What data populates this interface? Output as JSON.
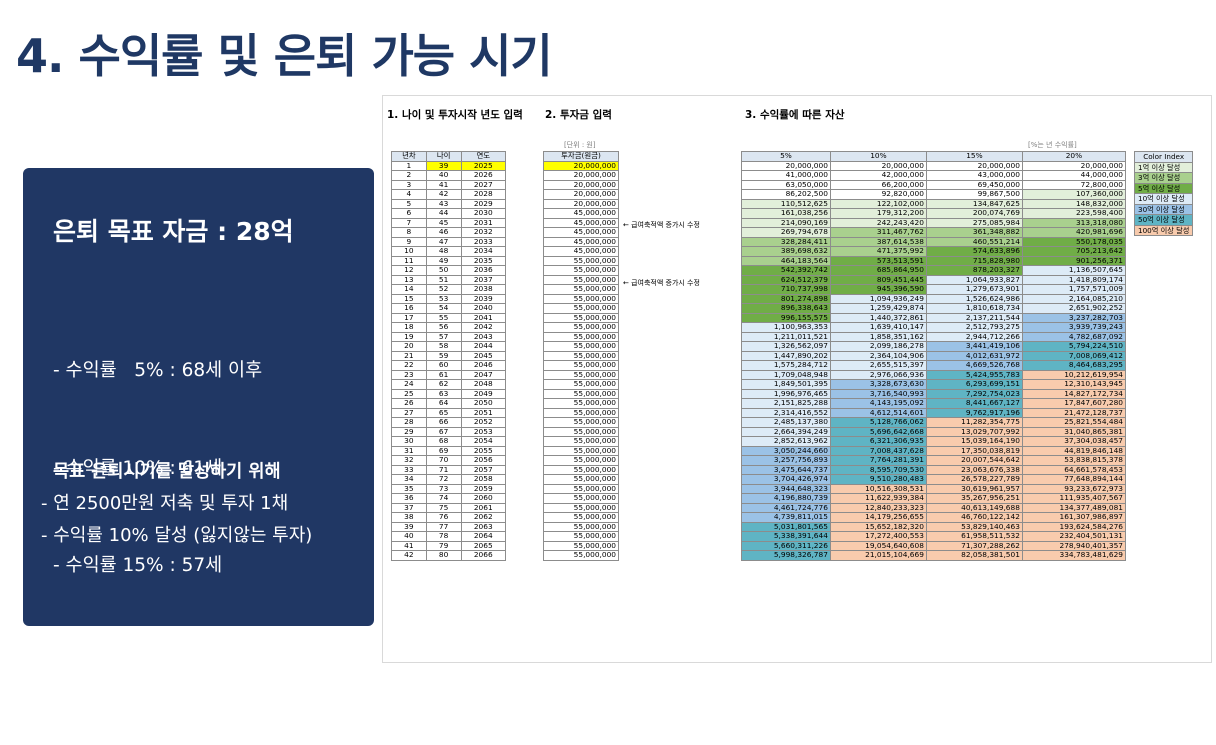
{
  "title": "4. 수익률 및 은퇴 가능 시기",
  "panel": {
    "goal": "은퇴 목표 자금 : 28억",
    "rates": [
      "- 수익률   5% : 68세 이후",
      "- 수익률 10% : 61세",
      "- 수익률 15% : 57세",
      "- 수익률 20% : 55세"
    ],
    "subhead": "목표 은퇴시기를 달성하기 위해",
    "plans": [
      "- 연 2500만원 저축 및 투자 1채",
      "- 수익률 10% 달성 (잃지않는 투자)"
    ]
  },
  "sheet": {
    "section1": "1. 나이 및 투자시작 년도 입력",
    "section2": "2. 투자금 입력",
    "section3": "3. 수익률에 따른 자산",
    "unit_won": "[단위 : 원]",
    "unit_rate": "[%는 년 수익률]",
    "headers1": [
      "년차",
      "나이",
      "연도"
    ],
    "header2": "투자금(원금)",
    "headers3": [
      "5%",
      "10%",
      "15%",
      "20%"
    ],
    "note": "← 급여축적액 증가시 수정",
    "legend_title": "Color Index",
    "legend": [
      {
        "label": "1억 이상 달성",
        "color": "#e2efda"
      },
      {
        "label": "3억 이상 달성",
        "color": "#a9d08e"
      },
      {
        "label": "5억 이상 달성",
        "color": "#70ad47"
      },
      {
        "label": "10억 이상 달성",
        "color": "#ddebf7"
      },
      {
        "label": "30억 이상 달성",
        "color": "#9bc2e6"
      },
      {
        "label": "50억 이상 달성",
        "color": "#5fb4c4"
      },
      {
        "label": "100억 이상 달성",
        "color": "#f8cbad"
      }
    ],
    "rows": [
      [
        "1",
        "39",
        "2025",
        "20,000,000",
        "20,000,000",
        "20,000,000",
        "20,000,000",
        "20,000,000"
      ],
      [
        "2",
        "40",
        "2026",
        "20,000,000",
        "41,000,000",
        "42,000,000",
        "43,000,000",
        "44,000,000"
      ],
      [
        "3",
        "41",
        "2027",
        "20,000,000",
        "63,050,000",
        "66,200,000",
        "69,450,000",
        "72,800,000"
      ],
      [
        "4",
        "42",
        "2028",
        "20,000,000",
        "86,202,500",
        "92,820,000",
        "99,867,500",
        "107,360,000"
      ],
      [
        "5",
        "43",
        "2029",
        "20,000,000",
        "110,512,625",
        "122,102,000",
        "134,847,625",
        "148,832,000"
      ],
      [
        "6",
        "44",
        "2030",
        "45,000,000",
        "161,038,256",
        "179,312,200",
        "200,074,769",
        "223,598,400"
      ],
      [
        "7",
        "45",
        "2031",
        "45,000,000",
        "214,090,169",
        "242,243,420",
        "275,085,984",
        "313,318,080"
      ],
      [
        "8",
        "46",
        "2032",
        "45,000,000",
        "269,794,678",
        "311,467,762",
        "361,348,882",
        "420,981,696"
      ],
      [
        "9",
        "47",
        "2033",
        "45,000,000",
        "328,284,411",
        "387,614,538",
        "460,551,214",
        "550,178,035"
      ],
      [
        "10",
        "48",
        "2034",
        "45,000,000",
        "389,698,632",
        "471,375,992",
        "574,633,896",
        "705,213,642"
      ],
      [
        "11",
        "49",
        "2035",
        "55,000,000",
        "464,183,564",
        "573,513,591",
        "715,828,980",
        "901,256,371"
      ],
      [
        "12",
        "50",
        "2036",
        "55,000,000",
        "542,392,742",
        "685,864,950",
        "878,203,327",
        "1,136,507,645"
      ],
      [
        "13",
        "51",
        "2037",
        "55,000,000",
        "624,512,379",
        "809,451,445",
        "1,064,933,827",
        "1,418,809,174"
      ],
      [
        "14",
        "52",
        "2038",
        "55,000,000",
        "710,737,998",
        "945,396,590",
        "1,279,673,901",
        "1,757,571,009"
      ],
      [
        "15",
        "53",
        "2039",
        "55,000,000",
        "801,274,898",
        "1,094,936,249",
        "1,526,624,986",
        "2,164,085,210"
      ],
      [
        "16",
        "54",
        "2040",
        "55,000,000",
        "896,338,643",
        "1,259,429,874",
        "1,810,618,734",
        "2,651,902,252"
      ],
      [
        "17",
        "55",
        "2041",
        "55,000,000",
        "996,155,575",
        "1,440,372,861",
        "2,137,211,544",
        "3,237,282,703"
      ],
      [
        "18",
        "56",
        "2042",
        "55,000,000",
        "1,100,963,353",
        "1,639,410,147",
        "2,512,793,275",
        "3,939,739,243"
      ],
      [
        "19",
        "57",
        "2043",
        "55,000,000",
        "1,211,011,521",
        "1,858,351,162",
        "2,944,712,266",
        "4,782,687,092"
      ],
      [
        "20",
        "58",
        "2044",
        "55,000,000",
        "1,326,562,097",
        "2,099,186,278",
        "3,441,419,106",
        "5,794,224,510"
      ],
      [
        "21",
        "59",
        "2045",
        "55,000,000",
        "1,447,890,202",
        "2,364,104,906",
        "4,012,631,972",
        "7,008,069,412"
      ],
      [
        "22",
        "60",
        "2046",
        "55,000,000",
        "1,575,284,712",
        "2,655,515,397",
        "4,669,526,768",
        "8,464,683,295"
      ],
      [
        "23",
        "61",
        "2047",
        "55,000,000",
        "1,709,048,948",
        "2,976,066,936",
        "5,424,955,783",
        "10,212,619,954"
      ],
      [
        "24",
        "62",
        "2048",
        "55,000,000",
        "1,849,501,395",
        "3,328,673,630",
        "6,293,699,151",
        "12,310,143,945"
      ],
      [
        "25",
        "63",
        "2049",
        "55,000,000",
        "1,996,976,465",
        "3,716,540,993",
        "7,292,754,023",
        "14,827,172,734"
      ],
      [
        "26",
        "64",
        "2050",
        "55,000,000",
        "2,151,825,288",
        "4,143,195,092",
        "8,441,667,127",
        "17,847,607,280"
      ],
      [
        "27",
        "65",
        "2051",
        "55,000,000",
        "2,314,416,552",
        "4,612,514,601",
        "9,762,917,196",
        "21,472,128,737"
      ],
      [
        "28",
        "66",
        "2052",
        "55,000,000",
        "2,485,137,380",
        "5,128,766,062",
        "11,282,354,775",
        "25,821,554,484"
      ],
      [
        "29",
        "67",
        "2053",
        "55,000,000",
        "2,664,394,249",
        "5,696,642,668",
        "13,029,707,992",
        "31,040,865,381"
      ],
      [
        "30",
        "68",
        "2054",
        "55,000,000",
        "2,852,613,962",
        "6,321,306,935",
        "15,039,164,190",
        "37,304,038,457"
      ],
      [
        "31",
        "69",
        "2055",
        "55,000,000",
        "3,050,244,660",
        "7,008,437,628",
        "17,350,038,819",
        "44,819,846,148"
      ],
      [
        "32",
        "70",
        "2056",
        "55,000,000",
        "3,257,756,893",
        "7,764,281,391",
        "20,007,544,642",
        "53,838,815,378"
      ],
      [
        "33",
        "71",
        "2057",
        "55,000,000",
        "3,475,644,737",
        "8,595,709,530",
        "23,063,676,338",
        "64,661,578,453"
      ],
      [
        "34",
        "72",
        "2058",
        "55,000,000",
        "3,704,426,974",
        "9,510,280,483",
        "26,578,227,789",
        "77,648,894,144"
      ],
      [
        "35",
        "73",
        "2059",
        "55,000,000",
        "3,944,648,323",
        "10,516,308,531",
        "30,619,961,957",
        "93,233,672,973"
      ],
      [
        "36",
        "74",
        "2060",
        "55,000,000",
        "4,196,880,739",
        "11,622,939,384",
        "35,267,956,251",
        "111,935,407,567"
      ],
      [
        "37",
        "75",
        "2061",
        "55,000,000",
        "4,461,724,776",
        "12,840,233,323",
        "40,613,149,688",
        "134,377,489,081"
      ],
      [
        "38",
        "76",
        "2062",
        "55,000,000",
        "4,739,811,015",
        "14,179,256,655",
        "46,760,122,142",
        "161,307,986,897"
      ],
      [
        "39",
        "77",
        "2063",
        "55,000,000",
        "5,031,801,565",
        "15,652,182,320",
        "53,829,140,463",
        "193,624,584,276"
      ],
      [
        "40",
        "78",
        "2064",
        "55,000,000",
        "5,338,391,644",
        "17,272,400,553",
        "61,958,511,532",
        "232,404,501,131"
      ],
      [
        "41",
        "79",
        "2065",
        "55,000,000",
        "5,660,311,226",
        "19,054,640,608",
        "71,307,288,262",
        "278,940,401,357"
      ],
      [
        "42",
        "80",
        "2066",
        "55,000,000",
        "5,998,326,787",
        "21,015,104,669",
        "82,058,381,501",
        "334,783,481,629"
      ]
    ]
  }
}
